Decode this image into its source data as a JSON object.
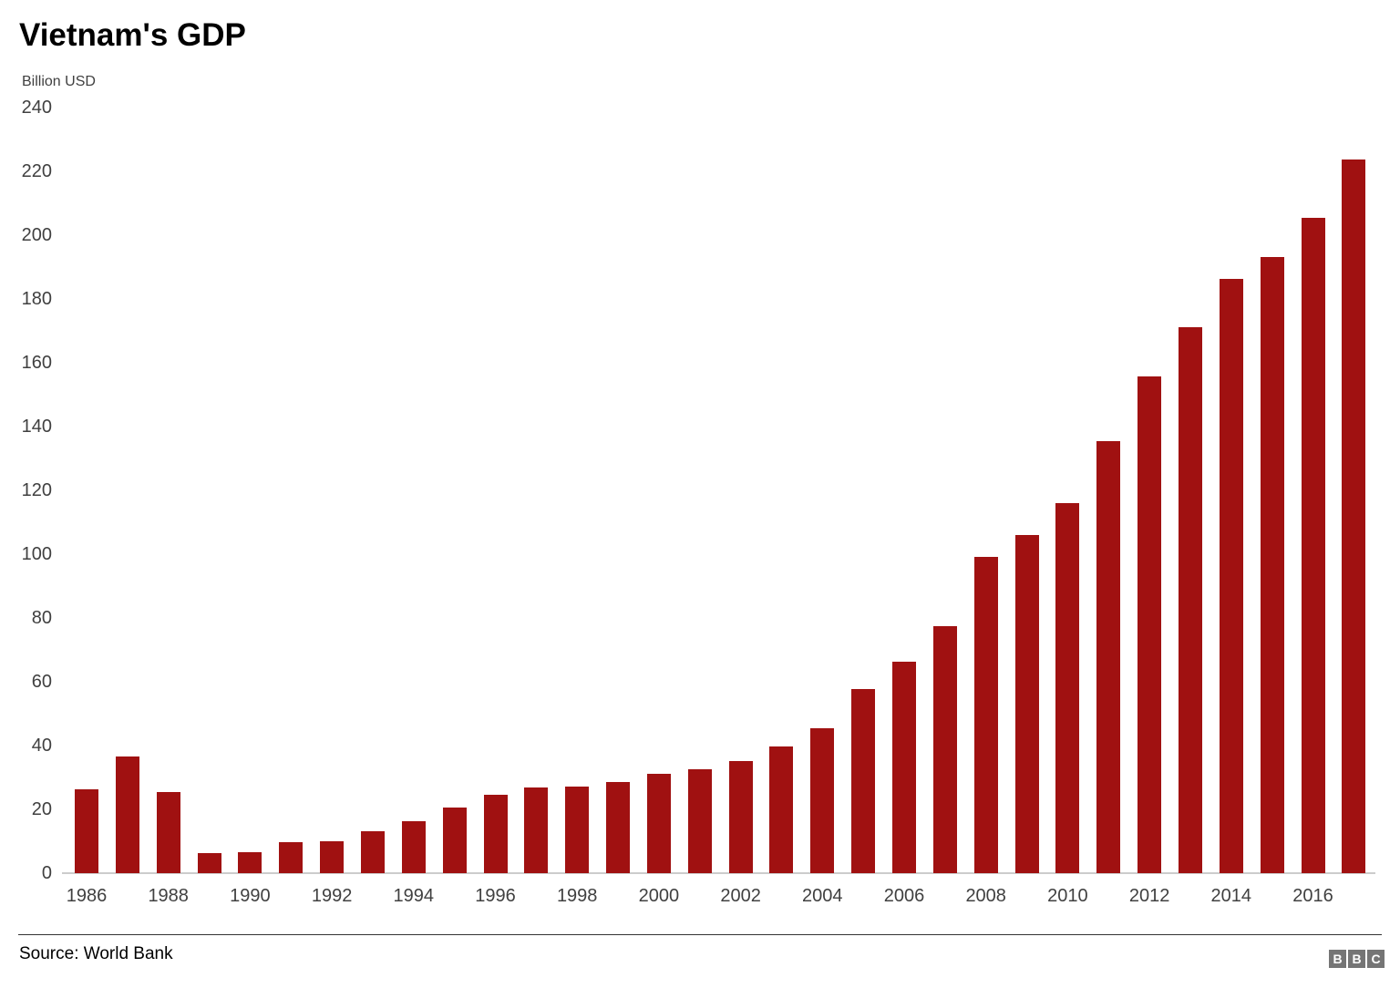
{
  "header": {
    "title": "Vietnam's GDP",
    "units_label": "Billion USD"
  },
  "footer": {
    "source": "Source: World Bank",
    "logo_letters": [
      "B",
      "B",
      "C"
    ]
  },
  "colors": {
    "bar": "#a01111",
    "tick_text": "#404040",
    "baseline": "#cccccc",
    "footer_rule": "#333333",
    "logo_bg": "#757575",
    "logo_text": "#ffffff"
  },
  "chart_data": {
    "type": "bar",
    "title": "Vietnam's GDP",
    "ylabel": "Billion USD",
    "source": "World Bank",
    "x": [
      1986,
      1987,
      1988,
      1989,
      1990,
      1991,
      1992,
      1993,
      1994,
      1995,
      1996,
      1997,
      1998,
      1999,
      2000,
      2001,
      2002,
      2003,
      2004,
      2005,
      2006,
      2007,
      2008,
      2009,
      2010,
      2011,
      2012,
      2013,
      2014,
      2015,
      2016,
      2017
    ],
    "values": [
      26.3,
      36.7,
      25.4,
      6.3,
      6.5,
      9.6,
      9.9,
      13.2,
      16.3,
      20.7,
      24.7,
      26.8,
      27.2,
      28.7,
      31.2,
      32.7,
      35.1,
      39.6,
      45.4,
      57.6,
      66.4,
      77.4,
      99.1,
      106.0,
      115.9,
      135.5,
      155.8,
      171.2,
      186.2,
      193.2,
      205.3,
      223.8
    ],
    "ylim": [
      0,
      240
    ],
    "yticks": [
      0,
      20,
      40,
      60,
      80,
      100,
      120,
      140,
      160,
      180,
      200,
      220,
      240
    ],
    "xticks": [
      1986,
      1988,
      1990,
      1992,
      1994,
      1996,
      1998,
      2000,
      2002,
      2004,
      2006,
      2008,
      2010,
      2012,
      2014,
      2016
    ],
    "grid": false,
    "legend_position": "none",
    "bar_color": "#a01111"
  }
}
